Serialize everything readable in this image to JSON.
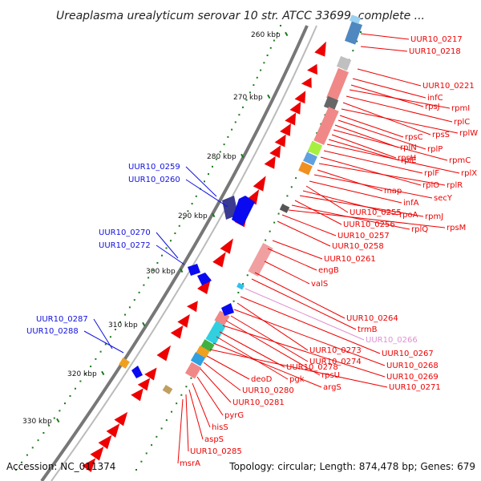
{
  "header": {
    "title": "Ureaplasma urealyticum serovar 10 str. ATCC 33699, complete ..."
  },
  "footer": {
    "accession": "Accession: NC_011374",
    "summary": "Topology: circular; Length: 874,478 bp; Genes: 679"
  },
  "ticks": [
    "260 kbp",
    "270 kbp",
    "280 kbp",
    "290 kbp",
    "300 kbp",
    "310 kbp",
    "320 kbp",
    "330 kbp"
  ],
  "colors": {
    "plus_strand": "#1010e0",
    "minus_strand": "#ee0000",
    "pink_label": "#e090d0",
    "backbone": "#777777",
    "tick_dots": "#1a7a1a"
  },
  "labels_left": [
    "UUR10_0259",
    "UUR10_0260",
    "UUR10_0270",
    "UUR10_0272",
    "UUR10_0287",
    "UUR10_0288"
  ],
  "labels_right": [
    "UUR10_0217",
    "UUR10_0218",
    "UUR10_0221",
    "infC",
    "rpsJ",
    "rpmI",
    "rplC",
    "rpsS",
    "rplW",
    "rpsC",
    "rplP",
    "rplN",
    "rpmC",
    "rpsH",
    "rplE",
    "rplX",
    "rplF",
    "rplO",
    "rplR",
    "map",
    "secY",
    "infA",
    "UUR10_0255",
    "rpoA",
    "rpmJ",
    "UUR10_0256",
    "rplQ",
    "rpsM",
    "UUR10_0257",
    "UUR10_0258",
    "UUR10_0261",
    "engB",
    "valS",
    "UUR10_0264",
    "trmB",
    "UUR10_0266",
    "UUR10_0267",
    "UUR10_0273",
    "UUR10_0268",
    "UUR10_0274",
    "rpsU",
    "UUR10_0269",
    "UUR10_0278",
    "pgk",
    "argS",
    "UUR10_0271",
    "deoD",
    "UUR10_0280",
    "UUR10_0281",
    "pyrG",
    "hisS",
    "aspS",
    "UUR10_0285",
    "msrA"
  ]
}
